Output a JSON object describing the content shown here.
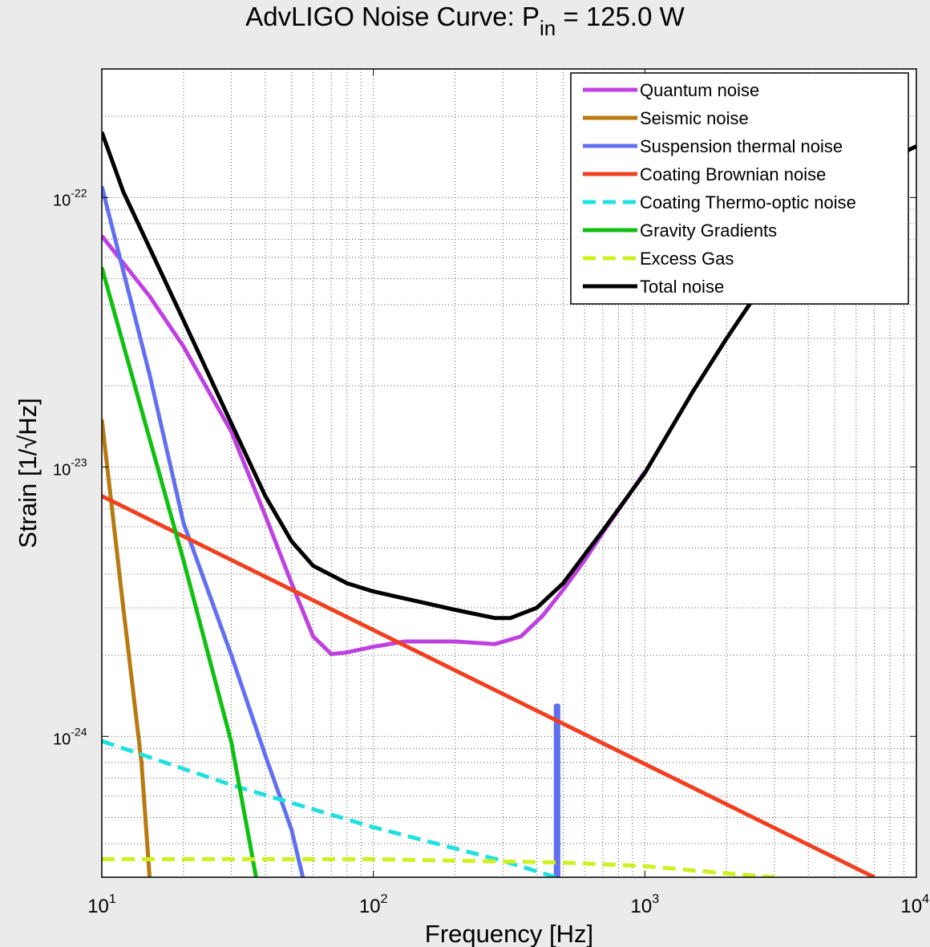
{
  "chart_data": {
    "type": "line",
    "title": {
      "text_before": "AdvLIGO Noise Curve: P",
      "subscript": "in",
      "text_after": " = 125.0 W"
    },
    "xlabel": "Frequency [Hz]",
    "ylabel": "Strain [1/√Hz]",
    "x_scale": "log",
    "y_scale": "log",
    "xlim": [
      10,
      10000
    ],
    "ylim": [
      3e-25,
      3e-22
    ],
    "grid": true,
    "legend_position": "top-right",
    "x_ticks": [
      {
        "value": 10,
        "base": "10",
        "exp": "1"
      },
      {
        "value": 100,
        "base": "10",
        "exp": "2"
      },
      {
        "value": 1000,
        "base": "10",
        "exp": "3"
      },
      {
        "value": 10000,
        "base": "10",
        "exp": "4"
      }
    ],
    "y_ticks": [
      {
        "value": 1e-24,
        "base": "10",
        "exp": "-24"
      },
      {
        "value": 1e-23,
        "base": "10",
        "exp": "-23"
      },
      {
        "value": 1e-22,
        "base": "10",
        "exp": "-22"
      }
    ],
    "series": [
      {
        "name": "Quantum noise",
        "color": "#bf40e0",
        "dash": "solid",
        "points": [
          [
            10,
            7.2e-23
          ],
          [
            15,
            4.3e-23
          ],
          [
            20,
            2.8e-23
          ],
          [
            30,
            1.35e-23
          ],
          [
            40,
            6.6e-24
          ],
          [
            50,
            3.7e-24
          ],
          [
            60,
            2.35e-24
          ],
          [
            70,
            2.02e-24
          ],
          [
            80,
            2.05e-24
          ],
          [
            100,
            2.15e-24
          ],
          [
            130,
            2.25e-24
          ],
          [
            200,
            2.25e-24
          ],
          [
            280,
            2.2e-24
          ],
          [
            350,
            2.35e-24
          ],
          [
            420,
            2.8e-24
          ],
          [
            500,
            3.5e-24
          ],
          [
            600,
            4.5e-24
          ],
          [
            700,
            5.7e-24
          ],
          [
            1000,
            9.6e-24
          ]
        ]
      },
      {
        "name": "Seismic noise",
        "color": "#b87a10",
        "dash": "solid",
        "points": [
          [
            10,
            1.5e-23
          ],
          [
            12,
            3e-24
          ],
          [
            14,
            8e-25
          ],
          [
            15,
            3e-25
          ]
        ]
      },
      {
        "name": "Suspension thermal noise",
        "color": "#6070f0",
        "dash": "solid",
        "points": [
          [
            10,
            1.1e-22
          ],
          [
            15,
            2.2e-23
          ],
          [
            20,
            6.2e-24
          ],
          [
            30,
            2e-24
          ],
          [
            40,
            8.5e-25
          ],
          [
            50,
            4.5e-25
          ],
          [
            55,
            3e-25
          ]
        ]
      },
      {
        "name": "Suspension thermal resonance",
        "color": "#6070f0",
        "dash": "solid",
        "points": [
          [
            470,
            3e-25
          ],
          [
            470,
            1.3e-24
          ],
          [
            480,
            1.3e-24
          ],
          [
            480,
            3e-25
          ]
        ]
      },
      {
        "name": "Coating Brownian noise",
        "color": "#f04020",
        "dash": "solid",
        "points": [
          [
            10,
            7.8e-24
          ],
          [
            7000,
            3e-25
          ]
        ]
      },
      {
        "name": "Coating Thermo-optic noise",
        "color": "#20e0e0",
        "dash": "dashed",
        "points": [
          [
            10,
            9.6e-25
          ],
          [
            30,
            6.6e-25
          ],
          [
            100,
            4.6e-25
          ],
          [
            300,
            3.45e-25
          ],
          [
            470,
            3e-25
          ]
        ]
      },
      {
        "name": "Gravity Gradients",
        "color": "#10c010",
        "dash": "solid",
        "points": [
          [
            10,
            5.5e-23
          ],
          [
            20,
            4.5e-24
          ],
          [
            30,
            9.5e-25
          ],
          [
            37,
            3e-25
          ]
        ]
      },
      {
        "name": "Excess Gas",
        "color": "#d0f020",
        "dash": "dashed",
        "points": [
          [
            10,
            3.5e-25
          ],
          [
            100,
            3.5e-25
          ],
          [
            500,
            3.4e-25
          ],
          [
            1000,
            3.3e-25
          ],
          [
            2000,
            3.1e-25
          ],
          [
            3000,
            3e-25
          ]
        ]
      },
      {
        "name": "Total noise",
        "color": "#000000",
        "dash": "solid",
        "points": [
          [
            10,
            1.75e-22
          ],
          [
            12,
            1.05e-22
          ],
          [
            15,
            6.5e-23
          ],
          [
            20,
            3.5e-23
          ],
          [
            30,
            1.45e-23
          ],
          [
            40,
            7.8e-24
          ],
          [
            50,
            5.3e-24
          ],
          [
            60,
            4.3e-24
          ],
          [
            80,
            3.7e-24
          ],
          [
            100,
            3.45e-24
          ],
          [
            150,
            3.15e-24
          ],
          [
            200,
            2.95e-24
          ],
          [
            280,
            2.75e-24
          ],
          [
            320,
            2.75e-24
          ],
          [
            400,
            3e-24
          ],
          [
            500,
            3.7e-24
          ],
          [
            700,
            5.8e-24
          ],
          [
            1000,
            9.5e-24
          ],
          [
            1500,
            1.9e-23
          ],
          [
            2000,
            3e-23
          ],
          [
            3000,
            5.5e-23
          ],
          [
            5000,
            1e-22
          ],
          [
            7000,
            1.3e-22
          ],
          [
            10000,
            1.55e-22
          ]
        ]
      }
    ],
    "legend": [
      {
        "label": "Quantum noise",
        "color": "#bf40e0",
        "dash": "solid"
      },
      {
        "label": "Seismic noise",
        "color": "#b87a10",
        "dash": "solid"
      },
      {
        "label": "Suspension thermal noise",
        "color": "#6070f0",
        "dash": "solid"
      },
      {
        "label": "Coating Brownian noise",
        "color": "#f04020",
        "dash": "solid"
      },
      {
        "label": "Coating Thermo-optic noise",
        "color": "#20e0e0",
        "dash": "dashed"
      },
      {
        "label": "Gravity Gradients",
        "color": "#10c010",
        "dash": "solid"
      },
      {
        "label": "Excess Gas",
        "color": "#d0f020",
        "dash": "dashed"
      },
      {
        "label": "Total noise",
        "color": "#000000",
        "dash": "solid"
      }
    ]
  }
}
